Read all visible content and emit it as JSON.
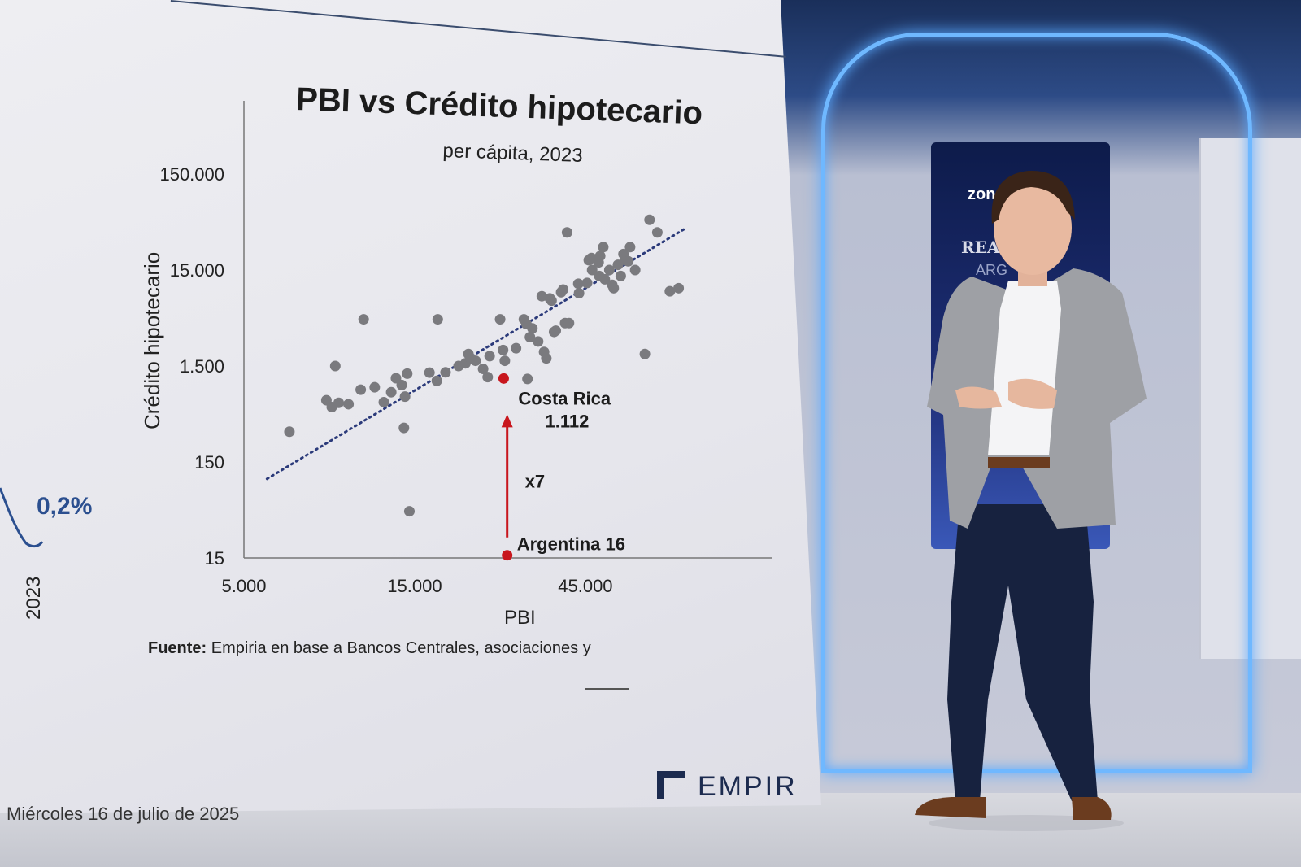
{
  "slide": {
    "title": "PBI vs Crédito hipotecario",
    "subtitle": "per cápita, 2023",
    "source_label": "Fuente:",
    "source_text": "Empiria en base a Bancos Centrales, asociaciones y",
    "left_value": "0,2%",
    "left_year": "2023",
    "date_line": "Miércoles 16 de julio de 2025",
    "logo": "EMPIR"
  },
  "stage_panel": {
    "logo": "zon",
    "title": "REAL E",
    "subtitle": "ARG"
  },
  "chart_data": {
    "type": "scatter",
    "title": "PBI vs Crédito hipotecario",
    "subtitle": "per cápita, 2023",
    "xlabel": "PBI",
    "ylabel": "Crédito hipotecario",
    "x_scale": "log",
    "y_scale": "log",
    "xlim": [
      5000,
      150000
    ],
    "ylim": [
      15,
      150000
    ],
    "x_ticks": [
      5000,
      15000,
      45000
    ],
    "x_tick_labels": [
      "5.000",
      "15.000",
      "45.000"
    ],
    "y_ticks": [
      15,
      150,
      1500,
      15000,
      150000
    ],
    "y_tick_labels": [
      "15",
      "150",
      "1.500",
      "15.000",
      "150.000"
    ],
    "grid": false,
    "points": [
      [
        6700,
        310
      ],
      [
        8500,
        660
      ],
      [
        8800,
        560
      ],
      [
        9000,
        1500
      ],
      [
        9200,
        620
      ],
      [
        9800,
        600
      ],
      [
        10600,
        850
      ],
      [
        10800,
        4600
      ],
      [
        11600,
        900
      ],
      [
        12300,
        630
      ],
      [
        12900,
        800
      ],
      [
        13300,
        1120
      ],
      [
        13800,
        950
      ],
      [
        14000,
        340
      ],
      [
        14100,
        720
      ],
      [
        14300,
        1250
      ],
      [
        14500,
        46
      ],
      [
        16500,
        1280
      ],
      [
        17300,
        1050
      ],
      [
        17400,
        4600
      ],
      [
        18300,
        1290
      ],
      [
        19900,
        1500
      ],
      [
        20800,
        1600
      ],
      [
        21200,
        2000
      ],
      [
        21500,
        1800
      ],
      [
        22200,
        1700
      ],
      [
        23300,
        1400
      ],
      [
        24000,
        1150
      ],
      [
        24300,
        1900
      ],
      [
        26000,
        4600
      ],
      [
        26500,
        2200
      ],
      [
        26800,
        1700
      ],
      [
        28800,
        2300
      ],
      [
        30300,
        4600
      ],
      [
        30800,
        4100
      ],
      [
        31000,
        1100
      ],
      [
        31500,
        3000
      ],
      [
        32000,
        3700
      ],
      [
        33200,
        2700
      ],
      [
        34000,
        8000
      ],
      [
        34500,
        2100
      ],
      [
        35000,
        1800
      ],
      [
        35800,
        7600
      ],
      [
        36200,
        7200
      ],
      [
        36800,
        3400
      ],
      [
        37200,
        3500
      ],
      [
        38500,
        8800
      ],
      [
        39000,
        9400
      ],
      [
        39500,
        4200
      ],
      [
        40000,
        37000
      ],
      [
        40500,
        4200
      ],
      [
        43000,
        10800
      ],
      [
        43200,
        8600
      ],
      [
        45500,
        11000
      ],
      [
        46000,
        19000
      ],
      [
        46800,
        20000
      ],
      [
        47000,
        15000
      ],
      [
        49000,
        18000
      ],
      [
        49200,
        13000
      ],
      [
        49500,
        21000
      ],
      [
        50500,
        26000
      ],
      [
        51000,
        12000
      ],
      [
        52500,
        15000
      ],
      [
        53500,
        10500
      ],
      [
        54000,
        9700
      ],
      [
        55500,
        17000
      ],
      [
        56500,
        13000
      ],
      [
        57500,
        22000
      ],
      [
        58300,
        19000
      ],
      [
        59300,
        18500
      ],
      [
        60000,
        26000
      ],
      [
        62000,
        15000
      ],
      [
        66000,
        2000
      ],
      [
        68000,
        50000
      ],
      [
        71500,
        37000
      ],
      [
        77500,
        9000
      ],
      [
        82000,
        9700
      ]
    ],
    "trendline": {
      "type": "log-linear fit",
      "from": [
        5800,
        100
      ],
      "to": [
        85000,
        40000
      ],
      "style": "dotted"
    },
    "highlights": [
      {
        "label": "Costa Rica",
        "value_label": "1.112",
        "x": 26600,
        "y": 1112,
        "color": "#c8161d"
      },
      {
        "label": "Argentina",
        "value_label": "16",
        "x": 27200,
        "y": 16,
        "color": "#c8161d"
      }
    ],
    "annotation": {
      "label": "x7",
      "color": "#c8161d"
    }
  }
}
